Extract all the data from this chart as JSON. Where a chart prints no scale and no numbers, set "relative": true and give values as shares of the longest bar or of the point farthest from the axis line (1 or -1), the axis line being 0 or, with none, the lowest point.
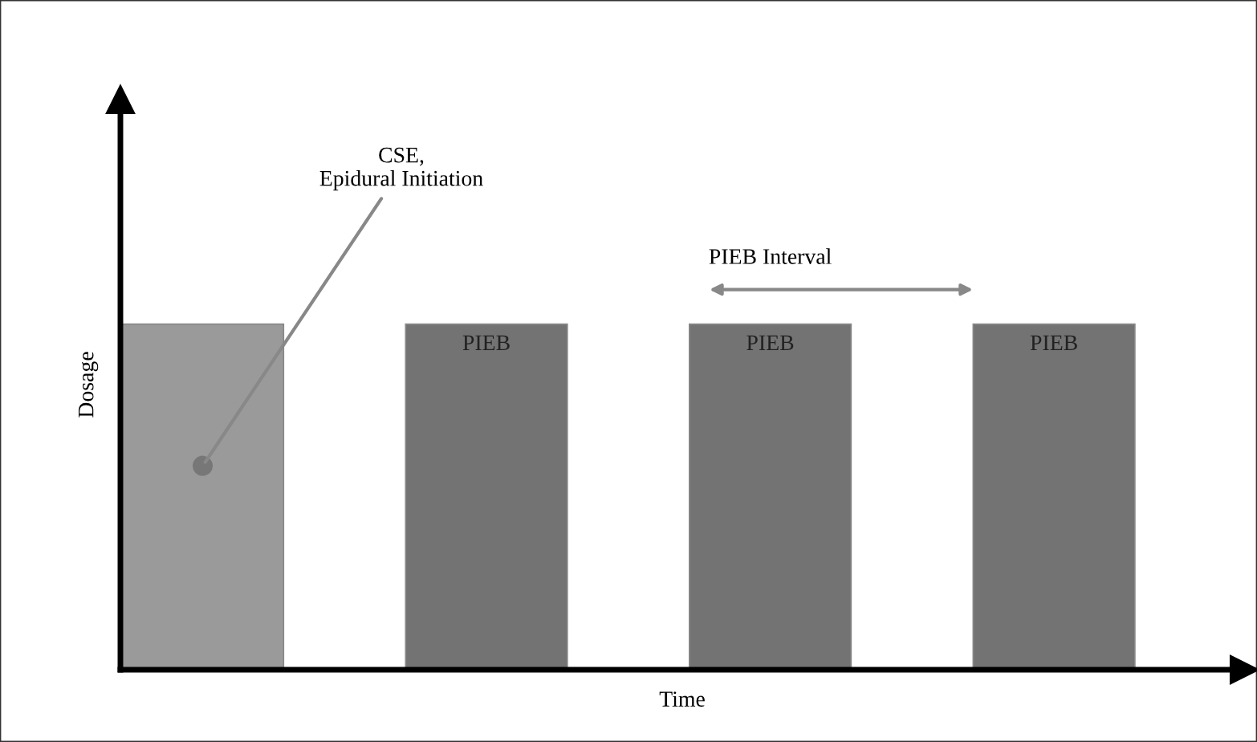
{
  "chart_data": {
    "type": "bar",
    "relative": true,
    "categories": [
      null,
      null,
      null,
      null
    ],
    "values": [
      1,
      1,
      1,
      1
    ],
    "colors": [
      "#9a9a9a",
      "#737373",
      "#737373",
      "#737373"
    ],
    "xlabel": "Time",
    "ylabel": "Dosage",
    "annotations": [
      "CSE,\nEpidural Initiation",
      "PIEB Interval",
      "PIEB",
      "PIEB",
      "PIEB"
    ],
    "grid": false,
    "legend": false
  }
}
